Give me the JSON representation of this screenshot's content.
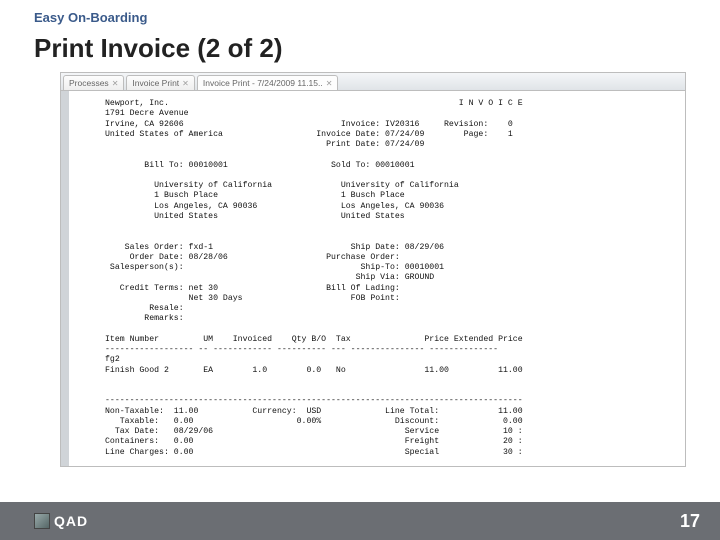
{
  "breadcrumb": "Easy On-Boarding",
  "page_title": "Print Invoice (2 of 2)",
  "tabs": [
    {
      "label": "Processes",
      "active": false
    },
    {
      "label": "Invoice Print",
      "active": false
    },
    {
      "label": "Invoice Print - 7/24/2009 11.15..",
      "active": true
    }
  ],
  "company": {
    "name": "Newport, Inc.",
    "street": "1791 Decre Avenue",
    "city": "Irvine, CA 92606",
    "country": "United States of America"
  },
  "doc_header": {
    "banner": "I N V O I C E",
    "invoice_no": "IV20316",
    "revision": "0",
    "invoice_date": "07/24/09",
    "page": "1",
    "print_date": "07/24/09"
  },
  "bill_to": {
    "code": "00010001",
    "lines": [
      "University of California",
      "1 Busch Place",
      "Los Angeles, CA 90036",
      "United States"
    ]
  },
  "sold_to": {
    "code": "00010001",
    "lines": [
      "University of California",
      "1 Busch Place",
      "Los Angeles, CA 90036",
      "United States"
    ]
  },
  "order": {
    "sales_order": "fxd-1",
    "order_date": "08/28/06",
    "salesperson": "",
    "credit_terms_1": "net 30",
    "credit_terms_2": "Net 30 Days",
    "resale": "",
    "remarks": "",
    "ship_date": "08/29/06",
    "purchase_order": "",
    "ship_to": "00010001",
    "ship_via": "GROUND",
    "bill_of_lading": "",
    "fob_point": ""
  },
  "line_items": {
    "headers": [
      "Item Number",
      "UM",
      "Invoiced",
      "Qty B/O",
      "Tax",
      "Price",
      "Extended Price"
    ],
    "rows": [
      {
        "item": "fg2",
        "desc": "Finish Good 2",
        "um": "EA",
        "invoiced": "1.0",
        "qty_bo": "0.0",
        "tax": "No",
        "price": "11.00",
        "ext": "11.00"
      }
    ]
  },
  "totals": {
    "non_taxable": "11.00",
    "taxable": "0.00",
    "tax_date": "08/29/06",
    "containers": "0.00",
    "line_charges": "0.00",
    "currency": "USD",
    "discount_pct": "0.00%",
    "line_total": "11.00",
    "discount": "0.00",
    "service": "10 :",
    "freight": "20 :",
    "special": "30 :"
  },
  "footer": {
    "brand": "QAD",
    "page_number": "17"
  },
  "txt": {
    "bill_to_lbl": "Bill To:",
    "sold_to_lbl": "Sold To:",
    "sales_order_lbl": "Sales Order:",
    "order_date_lbl": "Order Date:",
    "salesperson_lbl": "Salesperson(s):",
    "credit_terms_lbl": "Credit Terms:",
    "resale_lbl": "Resale:",
    "remarks_lbl": "Remarks:",
    "ship_date_lbl": "Ship Date:",
    "po_lbl": "Purchase Order:",
    "ship_to_lbl": "Ship-To:",
    "ship_via_lbl": "Ship Via:",
    "bol_lbl": "Bill Of Lading:",
    "fob_lbl": "FOB Point:",
    "non_taxable_lbl": "Non-Taxable:",
    "taxable_lbl": "Taxable:",
    "tax_date_lbl": "Tax Date:",
    "containers_lbl": "Containers:",
    "line_charges_lbl": "Line Charges:",
    "currency_lbl": "Currency:",
    "line_total_lbl": "Line Total:",
    "discount_lbl": "Discount:",
    "service_lbl": "Service",
    "freight_lbl": "Freight",
    "special_lbl": "Special",
    "invoice_lbl": "Invoice:",
    "revision_lbl": "Revision:",
    "invoice_date_lbl": "Invoice Date:",
    "page_lbl": "Page:",
    "print_date_lbl": "Print Date:"
  }
}
